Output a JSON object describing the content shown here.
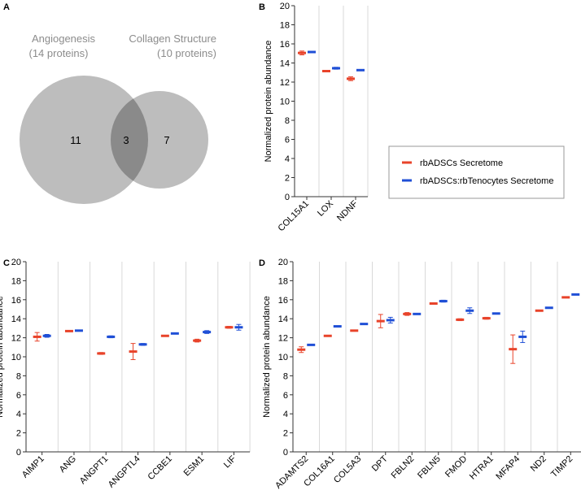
{
  "colors": {
    "series1": "#e8432a",
    "series2": "#1f4fd6",
    "venn": "#bdbdbd",
    "vennOverlap": "#8a8a8a"
  },
  "legend": [
    "rbADSCs Secretome",
    "rbADSCs:rbTenocytes Secretome"
  ],
  "chart_data": [
    {
      "panel": "A",
      "type": "venn",
      "sets": [
        {
          "name": "Angiogenesis",
          "subtitle": "(14 proteins)",
          "only": "11"
        },
        {
          "name": "Collagen Structure",
          "subtitle": "(10 proteins)",
          "only": "7"
        }
      ],
      "overlap": "3"
    },
    {
      "panel": "B",
      "type": "scatter",
      "ylabel": "Normalized protein abundance",
      "ylim": [
        0,
        20
      ],
      "yticks": [
        0,
        2,
        4,
        6,
        8,
        10,
        12,
        14,
        16,
        18,
        20
      ],
      "categories": [
        "COL15A1",
        "LOX",
        "NDNF"
      ],
      "series": [
        {
          "name": "rbADSCs Secretome",
          "values": [
            15.05,
            13.15,
            12.35
          ],
          "err": [
            0.2,
            0.08,
            0.2
          ]
        },
        {
          "name": "rbADSCs:rbTenocytes Secretome",
          "values": [
            15.15,
            13.45,
            13.25
          ],
          "err": [
            0.05,
            0.1,
            0.05
          ]
        }
      ]
    },
    {
      "panel": "C",
      "type": "scatter",
      "ylabel": "Normalized protein abundance",
      "ylim": [
        0,
        20
      ],
      "yticks": [
        0,
        2,
        4,
        6,
        8,
        10,
        12,
        14,
        16,
        18,
        20
      ],
      "categories": [
        "AIMP1",
        "ANG",
        "ANGPT1",
        "ANGPTL4",
        "CCBE1",
        "ESM1",
        "LIF"
      ],
      "series": [
        {
          "name": "rbADSCs Secretome",
          "values": [
            12.1,
            12.7,
            10.35,
            10.55,
            12.2,
            11.7,
            13.1
          ],
          "err": [
            0.45,
            0.05,
            0.1,
            0.85,
            0.05,
            0.15,
            0.1
          ]
        },
        {
          "name": "rbADSCs:rbTenocytes Secretome",
          "values": [
            12.2,
            12.75,
            12.1,
            11.3,
            12.45,
            12.6,
            13.1
          ],
          "err": [
            0.15,
            0.05,
            0.1,
            0.1,
            0.05,
            0.15,
            0.3
          ]
        }
      ]
    },
    {
      "panel": "D",
      "type": "scatter",
      "ylabel": "Normalized protein abundance",
      "ylim": [
        0,
        20
      ],
      "yticks": [
        0,
        2,
        4,
        6,
        8,
        10,
        12,
        14,
        16,
        18,
        20
      ],
      "categories": [
        "ADAMTS2",
        "COL16A1",
        "COL5A3",
        "DPT",
        "FBLN2",
        "FBLN5",
        "FMOD",
        "HTRA1",
        "MFAP4",
        "ND2",
        "TIMP2"
      ],
      "series": [
        {
          "name": "rbADSCs Secretome",
          "values": [
            10.75,
            12.2,
            12.75,
            13.75,
            14.5,
            15.6,
            13.9,
            14.05,
            10.8,
            14.85,
            16.25
          ],
          "err": [
            0.3,
            0.05,
            0.05,
            0.7,
            0.15,
            0.05,
            0.1,
            0.1,
            1.5,
            0.05,
            0.05
          ]
        },
        {
          "name": "rbADSCs:rbTenocytes Secretome",
          "values": [
            11.25,
            13.2,
            13.45,
            13.85,
            14.5,
            15.85,
            14.85,
            14.55,
            12.1,
            15.15,
            16.55
          ],
          "err": [
            0.05,
            0.05,
            0.05,
            0.3,
            0.05,
            0.1,
            0.3,
            0.05,
            0.6,
            0.05,
            0.05
          ]
        }
      ]
    }
  ]
}
